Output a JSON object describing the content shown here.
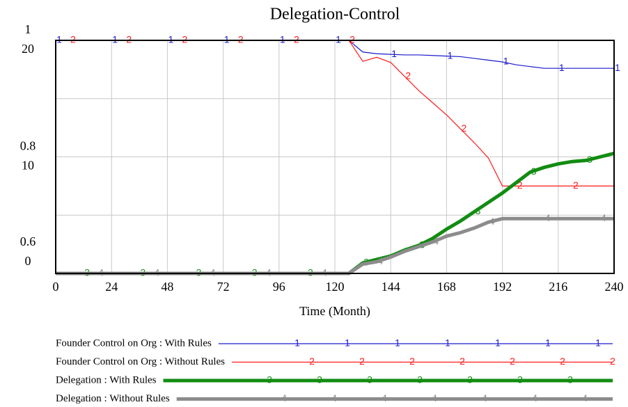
{
  "chart_data": {
    "type": "line",
    "title": "Delegation-Control",
    "x_label": "Time (Month)",
    "x": [
      0,
      6,
      12,
      18,
      24,
      30,
      36,
      42,
      48,
      54,
      60,
      66,
      72,
      78,
      84,
      90,
      96,
      102,
      108,
      114,
      120,
      126,
      132,
      138,
      144,
      150,
      156,
      162,
      168,
      174,
      180,
      186,
      192,
      198,
      204,
      210,
      216,
      222,
      228,
      234,
      240
    ],
    "xlim": [
      0,
      240
    ],
    "xticks": [
      0,
      24,
      48,
      72,
      96,
      120,
      144,
      168,
      192,
      216,
      240
    ],
    "ylim": [
      0.6,
      1
    ],
    "yticks": [
      0.6,
      0.8,
      1
    ],
    "y2lim": [
      0,
      20
    ],
    "y2ticks": [
      0,
      10,
      20
    ],
    "grid": true,
    "series": [
      {
        "name": "Founder Control on Org : With Rules",
        "marker": "1",
        "color": "#1a1acc",
        "values": [
          1,
          1,
          1,
          1,
          1,
          1,
          1,
          1,
          1,
          1,
          1,
          1,
          1,
          1,
          1,
          1,
          1,
          1,
          1,
          1,
          1,
          1,
          0.98,
          0.977,
          0.976,
          0.975,
          0.975,
          0.974,
          0.973,
          0.972,
          0.969,
          0.966,
          0.963,
          0.958,
          0.955,
          0.952,
          0.952,
          0.952,
          0.952,
          0.952,
          0.952
        ]
      },
      {
        "name": "Founder Control on Org : Without Rules",
        "marker": "2",
        "color": "#ff1a1a",
        "values": [
          1,
          1,
          1,
          1,
          1,
          1,
          1,
          1,
          1,
          1,
          1,
          1,
          1,
          1,
          1,
          1,
          1,
          1,
          1,
          1,
          1,
          1,
          0.964,
          0.971,
          0.962,
          0.938,
          0.914,
          0.893,
          0.872,
          0.848,
          0.824,
          0.798,
          0.75,
          0.75,
          0.75,
          0.75,
          0.75,
          0.75,
          0.75,
          0.75,
          0.75
        ]
      },
      {
        "name": "Delegation : With Rules",
        "marker": "3",
        "color": "#128c12",
        "axis": "y2",
        "values": [
          0,
          0,
          0,
          0,
          0,
          0,
          0,
          0,
          0,
          0,
          0,
          0,
          0,
          0,
          0,
          0,
          0,
          0,
          0,
          0,
          0,
          0,
          0.9,
          1.2,
          1.5,
          2.0,
          2.4,
          3.0,
          3.8,
          4.5,
          5.3,
          6.1,
          6.9,
          7.8,
          8.7,
          9.1,
          9.4,
          9.6,
          9.7,
          10.0,
          10.3
        ]
      },
      {
        "name": "Delegation : Without Rules",
        "marker": "4",
        "color": "#8c8c8c",
        "axis": "y2",
        "values": [
          0,
          0,
          0,
          0,
          0,
          0,
          0,
          0,
          0,
          0,
          0,
          0,
          0,
          0,
          0,
          0,
          0,
          0,
          0,
          0,
          0,
          0,
          0.8,
          1.0,
          1.4,
          1.9,
          2.3,
          2.7,
          3.2,
          3.5,
          3.9,
          4.4,
          4.7,
          4.7,
          4.7,
          4.7,
          4.7,
          4.7,
          4.7,
          4.7,
          4.7
        ]
      }
    ]
  }
}
